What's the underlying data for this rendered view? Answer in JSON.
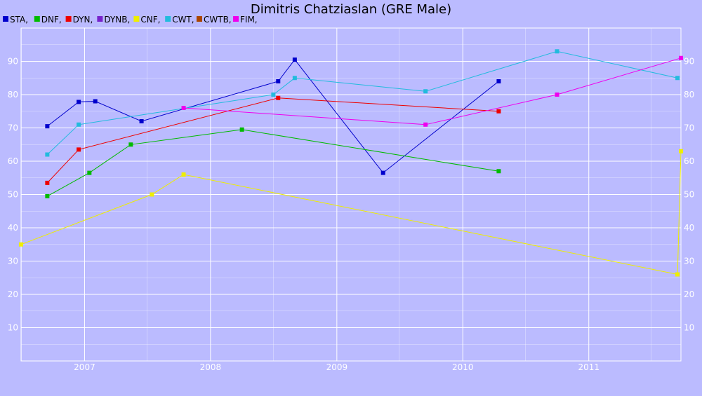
{
  "chart_data": {
    "type": "line",
    "title": "Dimitris Chatziaslan (GRE Male)",
    "xlabel": "",
    "ylabel": "",
    "ylim": [
      0,
      100
    ],
    "xlim": [
      "2006-07-01",
      "2011-09-25"
    ],
    "x_ticks": [
      "2007",
      "2008",
      "2009",
      "2010",
      "2011"
    ],
    "y_ticks": [
      "10",
      "20",
      "30",
      "40",
      "50",
      "60",
      "70",
      "80",
      "90"
    ],
    "grid": true,
    "legend_position": "top-left",
    "colors": {
      "background": "#bbbbff",
      "grid": "#ffffff"
    },
    "legend": [
      {
        "label": "STA,",
        "color": "#0000cc"
      },
      {
        "label": "DNF,",
        "color": "#00bb00"
      },
      {
        "label": "DYN,",
        "color": "#ee0000"
      },
      {
        "label": "DYNB,",
        "color": "#7722cc"
      },
      {
        "label": "CNF,",
        "color": "#eeee00"
      },
      {
        "label": "CWT,",
        "color": "#22bbdd"
      },
      {
        "label": "CWTB,",
        "color": "#aa4400"
      },
      {
        "label": "FIM,",
        "color": "#ee00ee"
      }
    ],
    "series": [
      {
        "name": "STA",
        "color": "#0000cc",
        "points": [
          {
            "x": "2006-09-15",
            "y": 70.5
          },
          {
            "x": "2006-12-15",
            "y": 77.8
          },
          {
            "x": "2007-02-01",
            "y": 78.0
          },
          {
            "x": "2007-06-15",
            "y": 72.0
          },
          {
            "x": "2008-07-15",
            "y": 84.0
          },
          {
            "x": "2008-09-01",
            "y": 90.5
          },
          {
            "x": "2009-05-15",
            "y": 56.5
          },
          {
            "x": "2010-04-15",
            "y": 84.0
          }
        ]
      },
      {
        "name": "DNF",
        "color": "#00bb00",
        "points": [
          {
            "x": "2006-09-15",
            "y": 49.5
          },
          {
            "x": "2007-01-15",
            "y": 56.5
          },
          {
            "x": "2007-05-15",
            "y": 65.0
          },
          {
            "x": "2008-04-01",
            "y": 69.5
          },
          {
            "x": "2010-04-15",
            "y": 57.0
          }
        ]
      },
      {
        "name": "DYN",
        "color": "#ee0000",
        "points": [
          {
            "x": "2006-09-15",
            "y": 53.5
          },
          {
            "x": "2006-12-15",
            "y": 63.5
          },
          {
            "x": "2008-07-15",
            "y": 79.0
          },
          {
            "x": "2010-04-15",
            "y": 75.0
          }
        ]
      },
      {
        "name": "CNF",
        "color": "#eeee00",
        "points": [
          {
            "x": "2006-07-01",
            "y": 35.0
          },
          {
            "x": "2007-07-15",
            "y": 50.0
          },
          {
            "x": "2007-10-15",
            "y": 56.0
          },
          {
            "x": "2011-09-15",
            "y": 26.0
          },
          {
            "x": "2011-09-25",
            "y": 63.0
          }
        ]
      },
      {
        "name": "CWT",
        "color": "#22bbdd",
        "points": [
          {
            "x": "2006-09-15",
            "y": 62.0
          },
          {
            "x": "2006-12-15",
            "y": 71.0
          },
          {
            "x": "2008-07-01",
            "y": 80.0
          },
          {
            "x": "2008-09-01",
            "y": 85.0
          },
          {
            "x": "2009-09-15",
            "y": 81.0
          },
          {
            "x": "2010-10-01",
            "y": 93.0
          },
          {
            "x": "2011-09-15",
            "y": 85.0
          }
        ]
      },
      {
        "name": "FIM",
        "color": "#ee00ee",
        "points": [
          {
            "x": "2007-10-15",
            "y": 76.0
          },
          {
            "x": "2009-09-15",
            "y": 71.0
          },
          {
            "x": "2010-10-01",
            "y": 80.0
          },
          {
            "x": "2011-09-25",
            "y": 91.0
          }
        ]
      }
    ]
  }
}
